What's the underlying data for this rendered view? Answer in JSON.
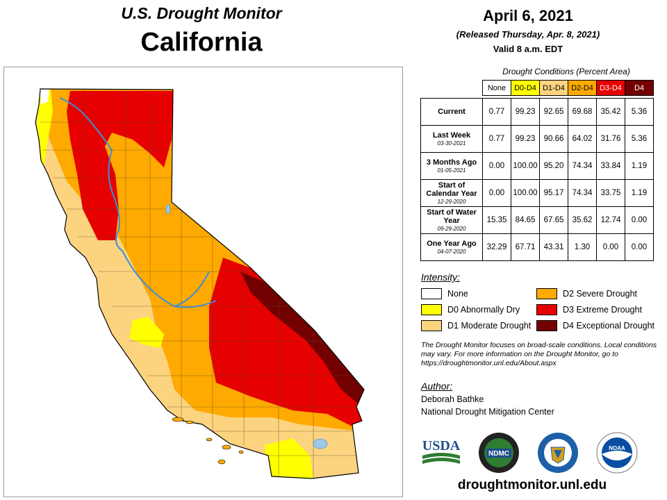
{
  "header": {
    "title": "U.S. Drought Monitor",
    "region": "California",
    "date": "April 6, 2021",
    "released": "(Released Thursday, Apr. 8, 2021)",
    "valid": "Valid 8 a.m. EDT"
  },
  "table": {
    "caption": "Drought Conditions (Percent Area)",
    "columns": [
      "None",
      "D0-D4",
      "D1-D4",
      "D2-D4",
      "D3-D4",
      "D4"
    ],
    "rows": [
      {
        "label": "Current",
        "date": "",
        "values": [
          "0.77",
          "99.23",
          "92.65",
          "69.68",
          "35.42",
          "5.36"
        ]
      },
      {
        "label": "Last Week",
        "date": "03-30-2021",
        "values": [
          "0.77",
          "99.23",
          "90.66",
          "64.02",
          "31.76",
          "5.36"
        ]
      },
      {
        "label": "3 Months Ago",
        "date": "01-05-2021",
        "values": [
          "0.00",
          "100.00",
          "95.20",
          "74.34",
          "33.84",
          "1.19"
        ]
      },
      {
        "label": "Start of Calendar Year",
        "date": "12-29-2020",
        "values": [
          "0.00",
          "100.00",
          "95.17",
          "74.34",
          "33.75",
          "1.19"
        ]
      },
      {
        "label": "Start of Water Year",
        "date": "09-29-2020",
        "values": [
          "15.35",
          "84.65",
          "67.65",
          "35.62",
          "12.74",
          "0.00"
        ]
      },
      {
        "label": "One Year Ago",
        "date": "04-07-2020",
        "values": [
          "32.29",
          "67.71",
          "43.31",
          "1.30",
          "0.00",
          "0.00"
        ]
      }
    ]
  },
  "legend": {
    "title": "Intensity:",
    "items": [
      {
        "label": "None",
        "color": "#ffffff"
      },
      {
        "label": "D0 Abnormally Dry",
        "color": "#ffff00"
      },
      {
        "label": "D1 Moderate Drought",
        "color": "#fcd37f"
      },
      {
        "label": "D2 Severe Drought",
        "color": "#ffaa00"
      },
      {
        "label": "D3 Extreme Drought",
        "color": "#e60000"
      },
      {
        "label": "D4 Exceptional Drought",
        "color": "#730000"
      }
    ]
  },
  "note": "The Drought Monitor focuses on broad-scale conditions. Local conditions may vary. For more information on the Drought Monitor, go to https://droughtmonitor.unl.edu/About.aspx",
  "author": {
    "title": "Author:",
    "name": "Deborah Bathke",
    "org": "National Drought Mitigation Center"
  },
  "logos": {
    "usda": "USDA",
    "ndmc": "NDMC",
    "noaa": "NOAA",
    "icons": [
      "usda-logo",
      "ndmc-logo",
      "commerce-seal",
      "noaa-logo"
    ]
  },
  "website": "droughtmonitor.unl.edu"
}
